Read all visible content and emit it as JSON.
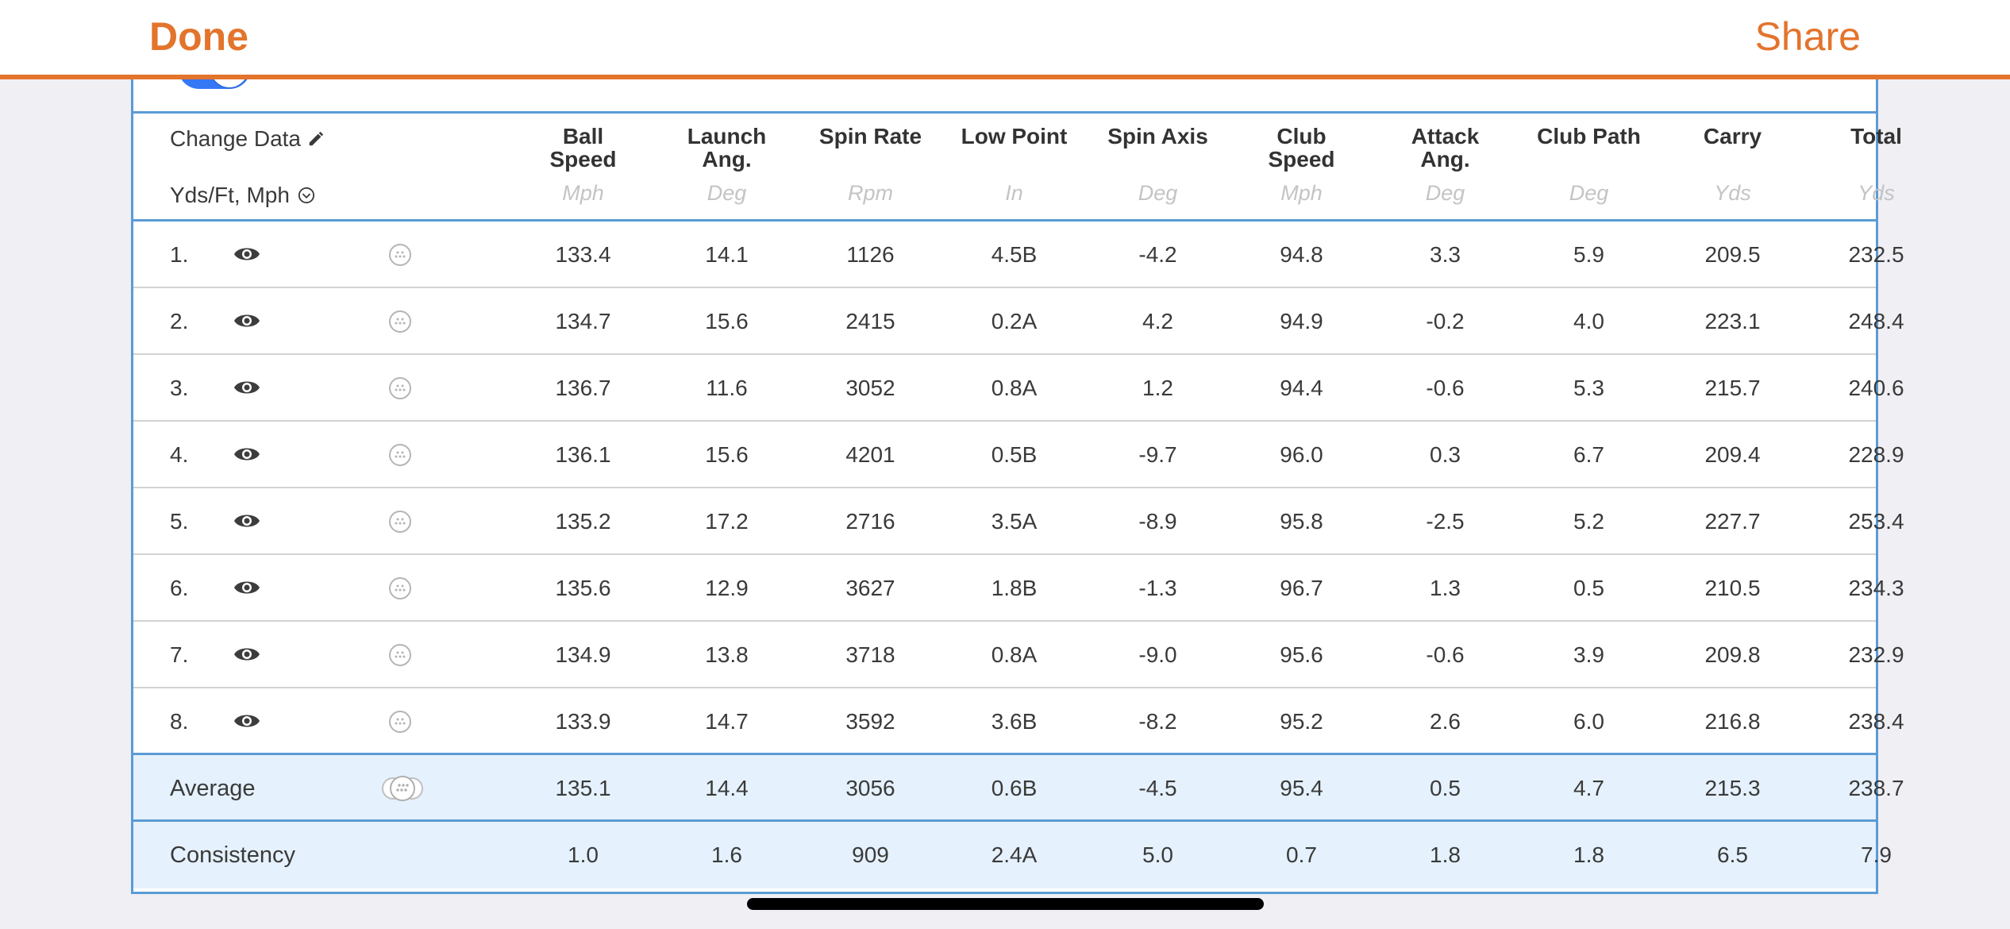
{
  "nav": {
    "done_label": "Done",
    "share_label": "Share"
  },
  "header": {
    "change_data_label": "Change Data",
    "units_label": "Yds/Ft, Mph",
    "columns": [
      {
        "name": "Ball Speed",
        "line1": "Ball",
        "line2": "Speed",
        "unit": "Mph"
      },
      {
        "name": "Launch Ang.",
        "line1": "Launch",
        "line2": "Ang.",
        "unit": "Deg"
      },
      {
        "name": "Spin Rate",
        "line1": "Spin Rate",
        "line2": "",
        "unit": "Rpm"
      },
      {
        "name": "Low Point",
        "line1": "Low Point",
        "line2": "",
        "unit": "In"
      },
      {
        "name": "Spin Axis",
        "line1": "Spin Axis",
        "line2": "",
        "unit": "Deg"
      },
      {
        "name": "Club Speed",
        "line1": "Club",
        "line2": "Speed",
        "unit": "Mph"
      },
      {
        "name": "Attack Ang.",
        "line1": "Attack",
        "line2": "Ang.",
        "unit": "Deg"
      },
      {
        "name": "Club Path",
        "line1": "Club Path",
        "line2": "",
        "unit": "Deg"
      },
      {
        "name": "Carry",
        "line1": "Carry",
        "line2": "",
        "unit": "Yds"
      },
      {
        "name": "Total",
        "line1": "Total",
        "line2": "",
        "unit": "Yds"
      }
    ]
  },
  "shots": [
    {
      "index": "1.",
      "values": [
        "133.4",
        "14.1",
        "1126",
        "4.5B",
        "-4.2",
        "94.8",
        "3.3",
        "5.9",
        "209.5",
        "232.5"
      ]
    },
    {
      "index": "2.",
      "values": [
        "134.7",
        "15.6",
        "2415",
        "0.2A",
        "4.2",
        "94.9",
        "-0.2",
        "4.0",
        "223.1",
        "248.4"
      ]
    },
    {
      "index": "3.",
      "values": [
        "136.7",
        "11.6",
        "3052",
        "0.8A",
        "1.2",
        "94.4",
        "-0.6",
        "5.3",
        "215.7",
        "240.6"
      ]
    },
    {
      "index": "4.",
      "values": [
        "136.1",
        "15.6",
        "4201",
        "0.5B",
        "-9.7",
        "96.0",
        "0.3",
        "6.7",
        "209.4",
        "228.9"
      ]
    },
    {
      "index": "5.",
      "values": [
        "135.2",
        "17.2",
        "2716",
        "3.5A",
        "-8.9",
        "95.8",
        "-2.5",
        "5.2",
        "227.7",
        "253.4"
      ]
    },
    {
      "index": "6.",
      "values": [
        "135.6",
        "12.9",
        "3627",
        "1.8B",
        "-1.3",
        "96.7",
        "1.3",
        "0.5",
        "210.5",
        "234.3"
      ]
    },
    {
      "index": "7.",
      "values": [
        "134.9",
        "13.8",
        "3718",
        "0.8A",
        "-9.0",
        "95.6",
        "-0.6",
        "3.9",
        "209.8",
        "232.9"
      ]
    },
    {
      "index": "8.",
      "values": [
        "133.9",
        "14.7",
        "3592",
        "3.6B",
        "-8.2",
        "95.2",
        "2.6",
        "6.0",
        "216.8",
        "238.4"
      ]
    }
  ],
  "average": {
    "label": "Average",
    "values": [
      "135.1",
      "14.4",
      "3056",
      "0.6B",
      "-4.5",
      "95.4",
      "0.5",
      "4.7",
      "215.3",
      "238.7"
    ]
  },
  "consistency": {
    "label": "Consistency",
    "values": [
      "1.0",
      "1.6",
      "909",
      "2.4A",
      "5.0",
      "0.7",
      "1.8",
      "1.8",
      "6.5",
      "7.9"
    ]
  },
  "colors": {
    "accent": "#e3742c",
    "table_border": "#5b9bd5",
    "summary_bg": "#e5f1fc",
    "toggle": "#3478f6"
  },
  "icons": {
    "row_visibility": "eye-icon",
    "row_ball": "golf-ball-icon",
    "average_balls": "golf-balls-group-icon"
  }
}
